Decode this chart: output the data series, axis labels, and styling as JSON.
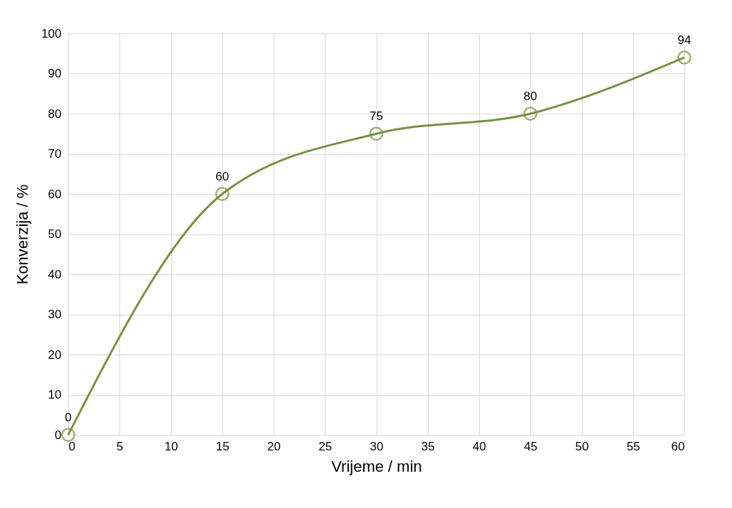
{
  "chart_data": {
    "type": "line",
    "xlabel": "Vrijeme / min",
    "ylabel": "Konverzija / %",
    "x": [
      0,
      15,
      30,
      45,
      60
    ],
    "series": [
      {
        "color": "#77933c",
        "values": [
          0,
          60,
          75,
          80,
          94
        ]
      }
    ],
    "xlim": [
      0,
      60
    ],
    "xticks": [
      0,
      5,
      10,
      15,
      20,
      25,
      30,
      35,
      40,
      45,
      50,
      55,
      60
    ],
    "ylim": [
      0,
      100
    ],
    "yticks": [
      0,
      10,
      20,
      30,
      40,
      50,
      60,
      70,
      80,
      90,
      100
    ],
    "grid": true,
    "marker": "circle",
    "line_style": "solid",
    "data_labels": true
  }
}
